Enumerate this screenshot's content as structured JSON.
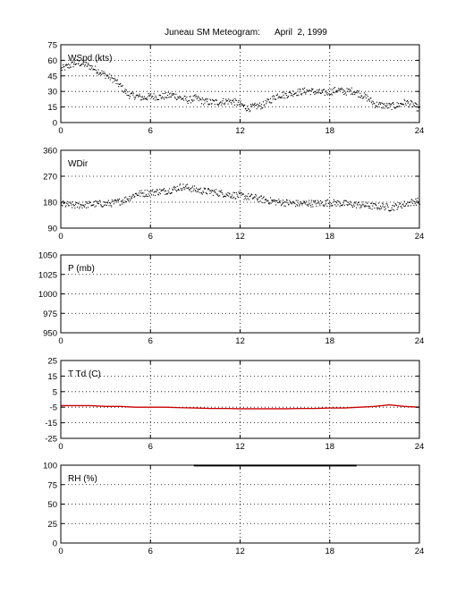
{
  "figure": {
    "title": "Juneau SM Meteogram:      April  2, 1999"
  },
  "chart_data": [
    {
      "type": "scatter",
      "label": "WSpd (kts)",
      "xlim": [
        0,
        24
      ],
      "xticks": [
        "0",
        "6",
        "12",
        "18",
        "24"
      ],
      "ylim": [
        0,
        75
      ],
      "yticks": [
        "0",
        "15",
        "30",
        "45",
        "60",
        "75"
      ],
      "grid": true,
      "color": "#000000",
      "series": [
        {
          "x": [
            0,
            0.5,
            1,
            1.5,
            2,
            2.5,
            3,
            3.5,
            4,
            4.5,
            5,
            5.5,
            6,
            6.5,
            7,
            7.5,
            8,
            8.5,
            9,
            9.5,
            10,
            10.5,
            11,
            11.5,
            12,
            12.5,
            13,
            13.5,
            14,
            14.5,
            15,
            15.5,
            16,
            16.5,
            17,
            17.5,
            18,
            18.5,
            19,
            19.5,
            20,
            20.5,
            21,
            21.5,
            22,
            22.5,
            23,
            23.5,
            24
          ],
          "values": [
            52,
            55,
            58,
            57,
            54,
            50,
            46,
            42,
            35,
            27,
            26,
            24,
            26,
            25,
            26,
            27,
            24,
            22,
            24,
            21,
            20,
            20,
            21,
            21,
            18,
            14,
            16,
            17,
            22,
            27,
            27,
            29,
            30,
            31,
            30,
            29,
            30,
            32,
            30,
            31,
            28,
            24,
            18,
            17,
            16,
            17,
            20,
            18,
            13
          ]
        }
      ]
    },
    {
      "type": "scatter",
      "label": "WDir",
      "xlim": [
        0,
        24
      ],
      "xticks": [
        "0",
        "6",
        "12",
        "18",
        "24"
      ],
      "ylim": [
        90,
        360
      ],
      "yticks": [
        "90",
        "180",
        "270",
        "360"
      ],
      "grid": true,
      "color": "#000000",
      "series": [
        {
          "x": [
            0,
            0.5,
            1,
            1.5,
            2,
            2.5,
            3,
            3.5,
            4,
            4.5,
            5,
            5.5,
            6,
            6.5,
            7,
            7.5,
            8,
            8.5,
            9,
            9.5,
            10,
            10.5,
            11,
            11.5,
            12,
            12.5,
            13,
            13.5,
            14,
            14.5,
            15,
            15.5,
            16,
            16.5,
            17,
            17.5,
            18,
            18.5,
            19,
            19.5,
            20,
            20.5,
            21,
            21.5,
            22,
            22.5,
            23,
            23.5,
            24
          ],
          "values": [
            175,
            172,
            170,
            172,
            174,
            176,
            176,
            178,
            185,
            195,
            210,
            212,
            215,
            218,
            220,
            226,
            235,
            232,
            225,
            220,
            218,
            214,
            210,
            206,
            204,
            200,
            197,
            190,
            186,
            182,
            180,
            178,
            176,
            178,
            177,
            178,
            180,
            178,
            176,
            174,
            172,
            170,
            166,
            168,
            162,
            168,
            175,
            182,
            185
          ]
        }
      ]
    },
    {
      "type": "line",
      "label": "P (mb)",
      "xlim": [
        0,
        24
      ],
      "xticks": [
        "0",
        "6",
        "12",
        "18",
        "24"
      ],
      "ylim": [
        950,
        1050
      ],
      "yticks": [
        "950",
        "975",
        "1000",
        "1025",
        "1050"
      ],
      "grid": true,
      "series": []
    },
    {
      "type": "line",
      "label": "T Td (C)",
      "xlim": [
        0,
        24
      ],
      "xticks": [
        "0",
        "6",
        "12",
        "18",
        "24"
      ],
      "ylim": [
        -25,
        25
      ],
      "yticks": [
        "-25",
        "-15",
        "-5",
        "5",
        "15",
        "25"
      ],
      "grid": true,
      "color": "#cc0000",
      "series": [
        {
          "x": [
            0,
            1,
            2,
            3,
            4,
            5,
            6,
            7,
            8,
            9,
            10,
            11,
            12,
            13,
            14,
            15,
            16,
            17,
            18,
            19,
            20,
            21,
            22,
            23,
            24
          ],
          "values": [
            -4,
            -4,
            -4,
            -4.5,
            -4.5,
            -5,
            -5,
            -5,
            -5.3,
            -5.5,
            -5.8,
            -5.8,
            -6,
            -6,
            -6,
            -6,
            -5.8,
            -5.8,
            -5.5,
            -5.5,
            -5,
            -4.5,
            -3.5,
            -4.5,
            -5
          ]
        }
      ]
    },
    {
      "type": "line",
      "label": "RH (%)",
      "xlim": [
        0,
        24
      ],
      "xticks": [
        "0",
        "6",
        "12",
        "18",
        "24"
      ],
      "ylim": [
        0,
        100
      ],
      "yticks": [
        "0",
        "25",
        "50",
        "75",
        "100"
      ],
      "grid": true,
      "color": "#000000",
      "series": [
        {
          "x": [
            8.9,
            10,
            12,
            14,
            16,
            18,
            19.8
          ],
          "values": [
            99.6,
            99.6,
            99.6,
            99.6,
            99.6,
            99.6,
            99.6
          ]
        }
      ]
    }
  ]
}
